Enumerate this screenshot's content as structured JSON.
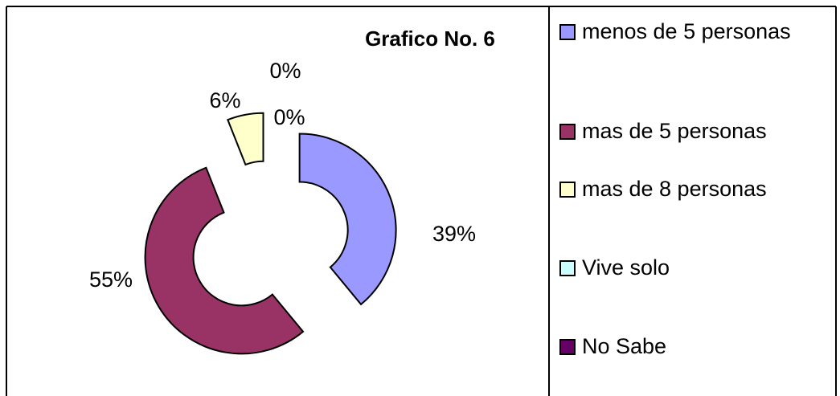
{
  "chart_data": {
    "type": "donut",
    "title": "Grafico No. 6",
    "categories": [
      "menos de 5 personas",
      "mas de 5 personas",
      "mas de 8 personas",
      "Vive solo",
      "No Sabe"
    ],
    "values": [
      39,
      55,
      6,
      0,
      0
    ],
    "value_labels": [
      "39%",
      "55%",
      "6%",
      "0%",
      "0%"
    ],
    "colors": [
      "#9999ff",
      "#993366",
      "#ffffcc",
      "#ccffff",
      "#660066"
    ]
  }
}
